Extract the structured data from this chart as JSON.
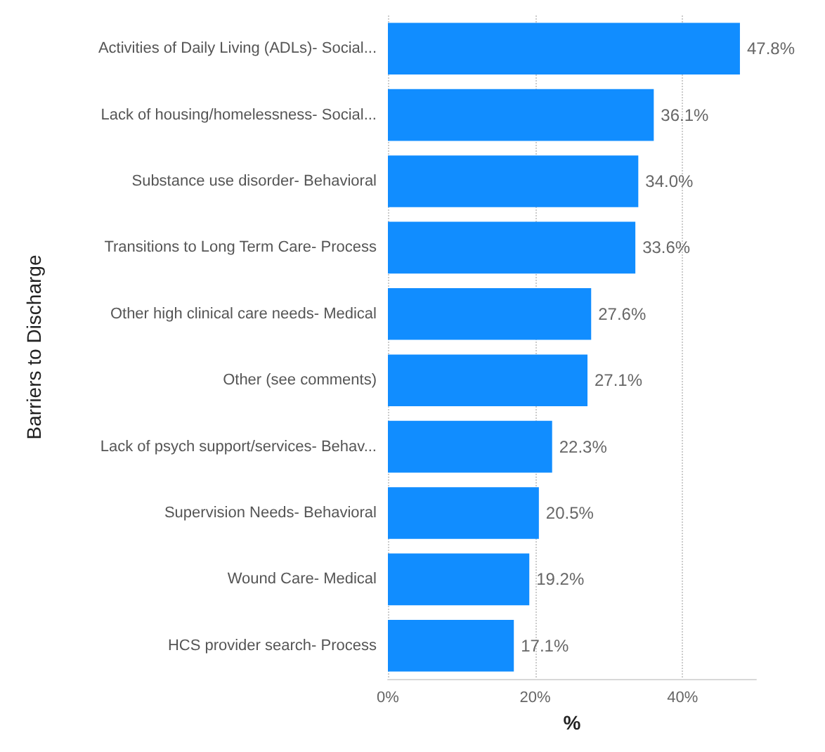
{
  "chart_data": {
    "type": "bar",
    "orientation": "horizontal",
    "xlabel": "%",
    "ylabel": "Barriers to Discharge",
    "categories": [
      "Activities of Daily Living (ADLs)- Social...",
      "Lack of housing/homelessness- Social...",
      "Substance use disorder- Behavioral",
      "Transitions to Long Term Care- Process",
      "Other high clinical care needs- Medical",
      "Other (see comments)",
      "Lack of psych support/services- Behav...",
      "Supervision Needs- Behavioral",
      "Wound Care- Medical",
      "HCS provider search- Process"
    ],
    "values": [
      47.8,
      36.1,
      34.0,
      33.6,
      27.6,
      27.1,
      22.3,
      20.5,
      19.2,
      17.1
    ],
    "value_labels": [
      "47.8%",
      "36.1%",
      "34.0%",
      "33.6%",
      "27.6%",
      "27.1%",
      "22.3%",
      "20.5%",
      "19.2%",
      "17.1%"
    ],
    "color": "#118dff",
    "xlim": [
      0,
      50
    ],
    "xticks": [
      {
        "value": 0,
        "label": "0%"
      },
      {
        "value": 20,
        "label": "20%"
      },
      {
        "value": 40,
        "label": "40%"
      }
    ],
    "grid": "x"
  }
}
